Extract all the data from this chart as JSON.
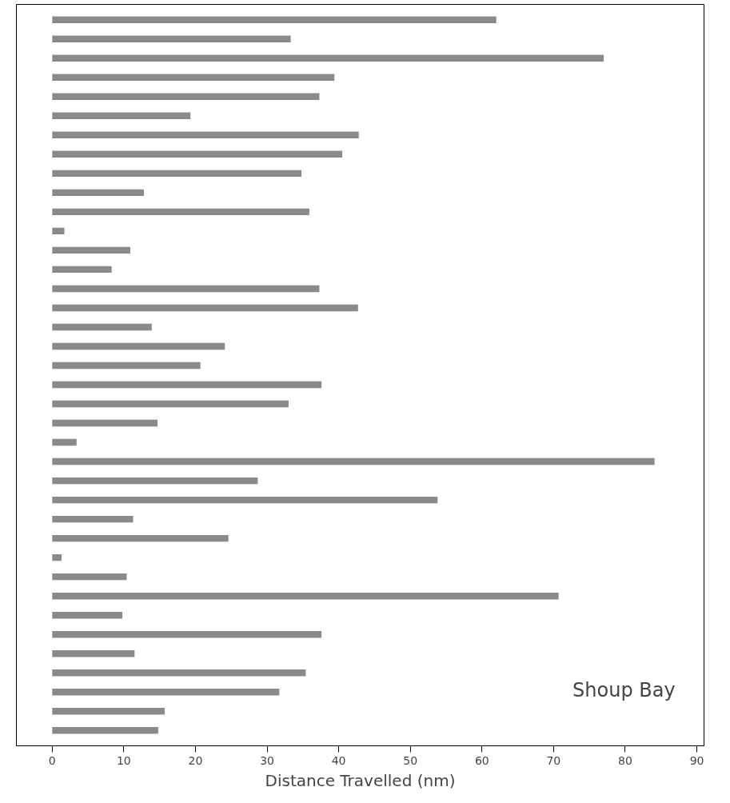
{
  "chart_data": {
    "type": "bar",
    "orientation": "horizontal",
    "title": "Shoup Bay",
    "xlabel": "Distance Travelled (nm)",
    "categories": [
      null,
      null,
      null,
      null,
      null,
      null,
      null,
      null,
      null,
      null,
      null,
      null,
      null,
      null,
      null,
      null,
      null,
      null,
      null,
      null,
      null,
      null,
      null,
      null,
      null,
      null,
      null,
      null,
      null,
      null,
      null,
      null,
      null,
      null,
      null,
      null,
      null,
      null
    ],
    "values": [
      62,
      33.3,
      77,
      39.4,
      37.3,
      19.3,
      42.8,
      40.5,
      34.8,
      12.8,
      35.9,
      1.7,
      10.9,
      8.3,
      37.3,
      42.7,
      13.9,
      24.1,
      20.7,
      37.6,
      33,
      14.7,
      3.4,
      84.1,
      28.7,
      53.8,
      11.3,
      24.6,
      1.3,
      10.4,
      70.7,
      9.8,
      37.6,
      11.5,
      35.4,
      31.7,
      15.7,
      14.8
    ],
    "color": "#8a8a8a",
    "xlim": [
      -5,
      91
    ],
    "xticks": [
      0,
      10,
      20,
      30,
      40,
      50,
      60,
      70,
      80,
      90
    ],
    "tick_labels": "x",
    "grid": false
  }
}
